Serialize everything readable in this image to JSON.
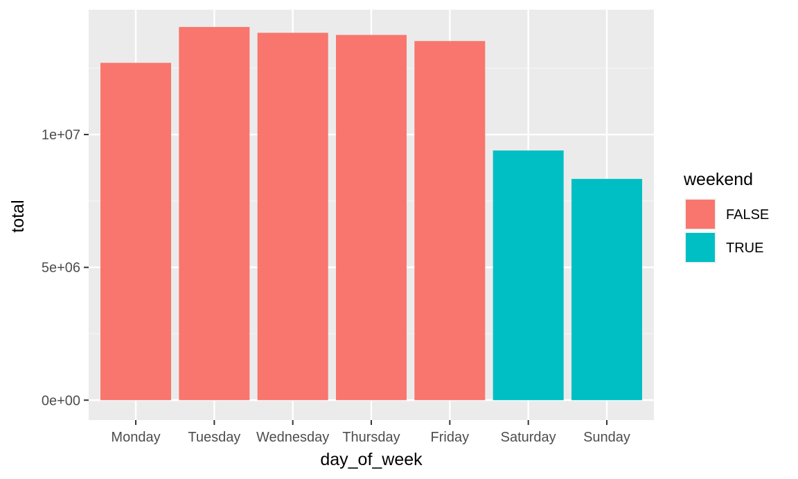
{
  "chart_data": {
    "type": "bar",
    "title": "",
    "xlabel": "day_of_week",
    "ylabel": "total",
    "categories": [
      "Monday",
      "Tuesday",
      "Wednesday",
      "Thursday",
      "Friday",
      "Saturday",
      "Sunday"
    ],
    "values": [
      12700000,
      14050000,
      13830000,
      13750000,
      13520000,
      9400000,
      8330000
    ],
    "fill_group": [
      "FALSE",
      "FALSE",
      "FALSE",
      "FALSE",
      "FALSE",
      "TRUE",
      "TRUE"
    ],
    "ylim": [
      -750000,
      14700000
    ],
    "y_ticks": [
      {
        "value": 0,
        "label": "0e+00"
      },
      {
        "value": 5000000,
        "label": "5e+06"
      },
      {
        "value": 10000000,
        "label": "1e+07"
      }
    ],
    "y_minor_ticks": [
      2500000,
      7500000,
      12500000
    ],
    "grid": true,
    "legend": {
      "title": "weekend",
      "position": "right",
      "entries": [
        {
          "label": "FALSE",
          "color": "#F8766D"
        },
        {
          "label": "TRUE",
          "color": "#00BFC4"
        }
      ]
    }
  },
  "colors": {
    "panel_background": "#EBEBEB",
    "grid_major": "#FFFFFF",
    "grid_minor": "#F5F5F5",
    "false_fill": "#F8766D",
    "true_fill": "#00BFC4",
    "tick_text": "#4D4D4D",
    "tick_mark": "#333333"
  }
}
